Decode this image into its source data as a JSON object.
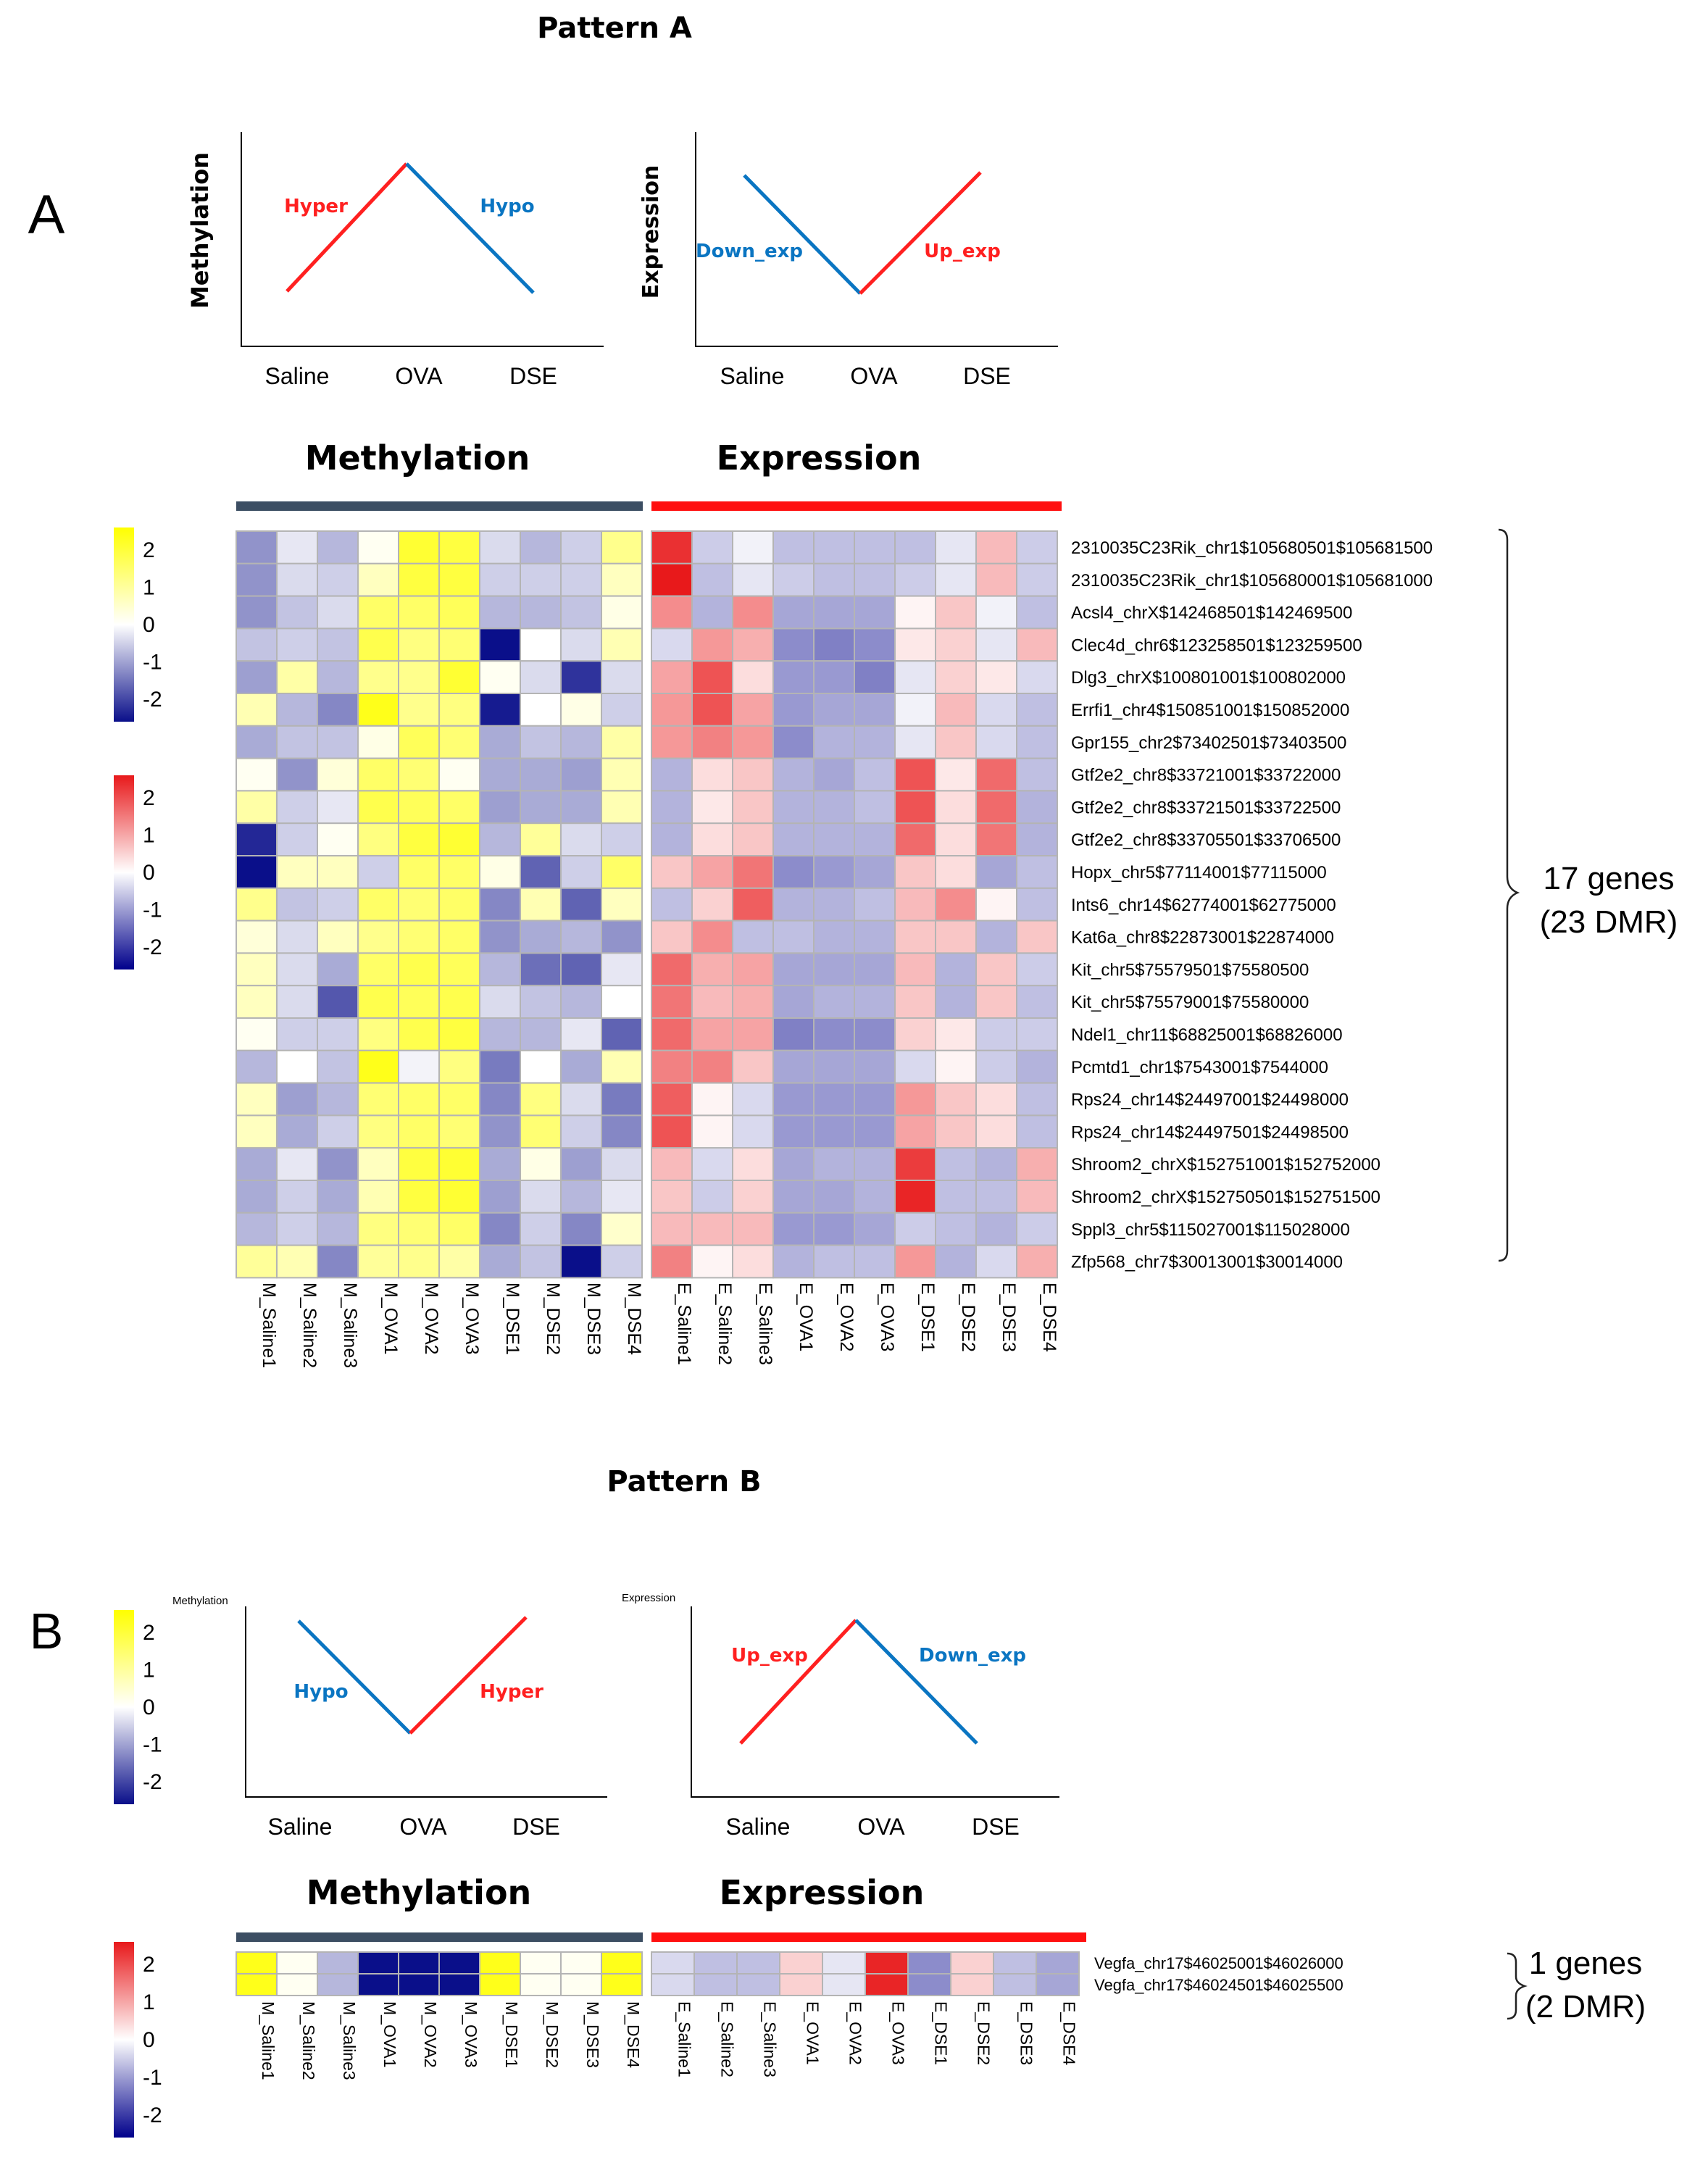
{
  "figure": {
    "pattern_a_title": "Pattern A",
    "pattern_b_title": "Pattern B",
    "panel_a_letter": "A",
    "panel_b_letter": "B"
  },
  "colors": {
    "methylation_scale": [
      "#0a0f8a",
      "#ffffff",
      "#ffff00"
    ],
    "expression_scale": [
      "#00008b",
      "#ffffff",
      "#e8191b"
    ],
    "hyper_line": "#ff2020",
    "hypo_line": "#0a75c2",
    "methylation_bar": "#3c4e63",
    "expression_bar": "#ff1010",
    "grid": "#b4b4b4"
  },
  "pattern_a": {
    "methylation_schematic": {
      "ylabel": "Methylation",
      "xlabels": [
        "Saline",
        "OVA",
        "DSE"
      ],
      "left_label": "Hyper",
      "right_label": "Hypo"
    },
    "expression_schematic": {
      "ylabel": "Expression",
      "xlabels": [
        "Saline",
        "OVA",
        "DSE"
      ],
      "left_label": "Down_exp",
      "right_label": "Up_exp"
    },
    "methylation_header": "Methylation",
    "expression_header": "Expression",
    "bracket_label_1": "17 genes",
    "bracket_label_2": "(23 DMR)"
  },
  "pattern_b": {
    "methylation_schematic": {
      "ylabel": "Methylation",
      "xlabels": [
        "Saline",
        "OVA",
        "DSE"
      ],
      "left_label": "Hypo",
      "right_label": "Hyper"
    },
    "expression_schematic": {
      "ylabel": "Expression",
      "xlabels": [
        "Saline",
        "OVA",
        "DSE"
      ],
      "left_label": "Up_exp",
      "right_label": "Down_exp"
    },
    "methylation_header": "Methylation",
    "expression_header": "Expression",
    "bracket_label_1": "1 genes",
    "bracket_label_2": "(2 DMR)"
  },
  "chart_data": [
    {
      "type": "heatmap",
      "title": "Pattern A",
      "color_scale_range": [
        -2,
        2
      ],
      "scale_ticks": [
        "2",
        "1",
        "0",
        "-1",
        "-2"
      ],
      "methylation_columns": [
        "M_Saline1",
        "M_Saline2",
        "M_Saline3",
        "M_OVA1",
        "M_OVA2",
        "M_OVA3",
        "M_DSE1",
        "M_DSE2",
        "M_DSE3",
        "M_DSE4"
      ],
      "expression_columns": [
        "E_Saline1",
        "E_Saline2",
        "E_Saline3",
        "E_OVA1",
        "E_OVA2",
        "E_OVA3",
        "E_DSE1",
        "E_DSE2",
        "E_DSE3",
        "E_DSE4"
      ],
      "rows": [
        "2310035C23Rik_chr1$105680501$105681500",
        "2310035C23Rik_chr1$105680001$105681000",
        "Acsl4_chrX$142468501$142469500",
        "Clec4d_chr6$123258501$123259500",
        "Dlg3_chrX$100801001$100802000",
        "Errfi1_chr4$150851001$150852000",
        "Gpr155_chr2$73402501$73403500",
        "Gtf2e2_chr8$33721001$33722000",
        "Gtf2e2_chr8$33721501$33722500",
        "Gtf2e2_chr8$33705501$33706500",
        "Hopx_chr5$77114001$77115000",
        "Ints6_chr14$62774001$62775000",
        "Kat6a_chr8$22873001$22874000",
        "Kit_chr5$75579501$75580500",
        "Kit_chr5$75579001$75580000",
        "Ndel1_chr11$68825001$68826000",
        "Pcmtd1_chr1$7543001$7544000",
        "Rps24_chr14$24497001$24498000",
        "Rps24_chr14$24497501$24498500",
        "Shroom2_chrX$152751001$152752000",
        "Shroom2_chrX$152750501$152751500",
        "Sppl3_chr5$115027001$115028000",
        "Zfp568_chr7$30013001$30014000"
      ],
      "methylation_values": [
        [
          -0.9,
          -0.2,
          -0.6,
          0.1,
          1.6,
          1.5,
          -0.3,
          -0.6,
          -0.4,
          0.9
        ],
        [
          -0.9,
          -0.3,
          -0.4,
          0.5,
          1.5,
          1.5,
          -0.4,
          -0.4,
          -0.4,
          0.5
        ],
        [
          -0.9,
          -0.5,
          -0.3,
          1.2,
          1.2,
          1.3,
          -0.6,
          -0.6,
          -0.5,
          0.2
        ],
        [
          -0.5,
          -0.4,
          -0.5,
          1.4,
          1.0,
          1.1,
          -2.0,
          0.0,
          -0.3,
          0.6
        ],
        [
          -0.8,
          0.7,
          -0.6,
          0.9,
          0.9,
          1.6,
          0.1,
          -0.3,
          -1.7,
          -0.3
        ],
        [
          0.6,
          -0.6,
          -1.0,
          1.8,
          0.9,
          1.0,
          -1.9,
          0.0,
          0.2,
          -0.4
        ],
        [
          -0.7,
          -0.5,
          -0.5,
          0.2,
          1.3,
          1.1,
          -0.7,
          -0.5,
          -0.6,
          0.7
        ],
        [
          0.1,
          -0.9,
          0.3,
          1.2,
          1.1,
          0.1,
          -0.7,
          -0.7,
          -0.8,
          0.6
        ],
        [
          0.7,
          -0.4,
          -0.2,
          1.4,
          1.3,
          1.2,
          -0.8,
          -0.7,
          -0.7,
          0.6
        ],
        [
          -1.8,
          -0.4,
          0.1,
          1.0,
          1.5,
          1.6,
          -0.6,
          0.8,
          -0.3,
          -0.4
        ],
        [
          -2.1,
          0.5,
          0.5,
          -0.4,
          1.2,
          1.2,
          0.2,
          -1.3,
          -0.4,
          1.2
        ],
        [
          0.9,
          -0.5,
          -0.4,
          1.2,
          1.1,
          1.2,
          -1.0,
          0.6,
          -1.3,
          0.5
        ],
        [
          0.3,
          -0.3,
          0.5,
          0.9,
          1.1,
          1.2,
          -0.9,
          -0.7,
          -0.6,
          -0.9
        ],
        [
          0.5,
          -0.3,
          -0.7,
          1.2,
          1.4,
          1.3,
          -0.6,
          -1.2,
          -1.3,
          -0.2
        ],
        [
          0.5,
          -0.3,
          -1.4,
          1.4,
          1.3,
          1.4,
          -0.3,
          -0.5,
          -0.6,
          0.0
        ],
        [
          0.1,
          -0.4,
          -0.4,
          1.0,
          1.4,
          1.5,
          -0.6,
          -0.6,
          -0.2,
          -1.3
        ],
        [
          -0.6,
          0.0,
          -0.5,
          1.8,
          -0.1,
          1.0,
          -1.1,
          0.0,
          -0.7,
          0.6
        ],
        [
          0.5,
          -0.8,
          -0.6,
          1.1,
          1.2,
          1.2,
          -1.0,
          1.0,
          -0.3,
          -1.1
        ],
        [
          0.5,
          -0.7,
          -0.4,
          1.0,
          1.2,
          1.1,
          -0.9,
          1.1,
          -0.4,
          -1.0
        ],
        [
          -0.7,
          -0.2,
          -0.9,
          0.5,
          1.5,
          1.6,
          -0.7,
          0.2,
          -0.8,
          -0.3
        ],
        [
          -0.7,
          -0.4,
          -0.7,
          0.6,
          1.5,
          1.6,
          -0.8,
          -0.3,
          -0.6,
          -0.2
        ],
        [
          -0.6,
          -0.4,
          -0.6,
          1.0,
          1.1,
          1.2,
          -1.0,
          -0.4,
          -1.0,
          0.4
        ],
        [
          0.8,
          0.6,
          -1.0,
          0.8,
          0.9,
          0.7,
          -0.7,
          -0.5,
          -2.0,
          -0.4
        ]
      ],
      "expression_values": [
        [
          1.8,
          -0.4,
          -0.1,
          -0.5,
          -0.5,
          -0.5,
          -0.5,
          -0.2,
          0.6,
          -0.4
        ],
        [
          2.1,
          -0.5,
          -0.2,
          -0.4,
          -0.5,
          -0.5,
          -0.4,
          -0.2,
          0.6,
          -0.4
        ],
        [
          1.0,
          -0.6,
          1.0,
          -0.7,
          -0.7,
          -0.7,
          0.1,
          0.5,
          -0.1,
          -0.5
        ],
        [
          -0.3,
          0.9,
          0.7,
          -0.9,
          -1.0,
          -0.9,
          0.2,
          0.4,
          -0.2,
          0.6
        ],
        [
          0.8,
          1.5,
          0.3,
          -0.8,
          -0.8,
          -1.0,
          -0.2,
          0.4,
          0.2,
          -0.3
        ],
        [
          0.9,
          1.5,
          0.8,
          -0.8,
          -0.7,
          -0.7,
          -0.1,
          0.6,
          -0.3,
          -0.5
        ],
        [
          0.9,
          1.1,
          0.9,
          -0.9,
          -0.6,
          -0.6,
          -0.2,
          0.5,
          -0.3,
          -0.5
        ],
        [
          -0.6,
          0.3,
          0.5,
          -0.6,
          -0.7,
          -0.5,
          1.5,
          0.2,
          1.3,
          -0.5
        ],
        [
          -0.6,
          0.2,
          0.5,
          -0.6,
          -0.6,
          -0.5,
          1.5,
          0.3,
          1.3,
          -0.6
        ],
        [
          -0.6,
          0.3,
          0.5,
          -0.6,
          -0.6,
          -0.6,
          1.3,
          0.3,
          1.2,
          -0.6
        ],
        [
          0.5,
          0.8,
          1.2,
          -0.9,
          -0.8,
          -0.7,
          0.5,
          0.3,
          -0.7,
          -0.5
        ],
        [
          -0.5,
          0.4,
          1.4,
          -0.6,
          -0.6,
          -0.5,
          0.6,
          1.0,
          0.1,
          -0.5
        ],
        [
          0.5,
          1.0,
          -0.5,
          -0.5,
          -0.6,
          -0.6,
          0.5,
          0.5,
          -0.6,
          0.5
        ],
        [
          1.3,
          0.7,
          0.8,
          -0.7,
          -0.7,
          -0.7,
          0.6,
          -0.6,
          0.5,
          -0.4
        ],
        [
          1.2,
          0.6,
          0.7,
          -0.7,
          -0.6,
          -0.6,
          0.5,
          -0.6,
          0.5,
          -0.5
        ],
        [
          1.3,
          0.8,
          0.8,
          -1.0,
          -0.9,
          -0.9,
          0.4,
          0.2,
          -0.4,
          -0.4
        ],
        [
          1.1,
          1.1,
          0.5,
          -0.7,
          -0.7,
          -0.7,
          -0.3,
          0.1,
          -0.4,
          -0.6
        ],
        [
          1.4,
          0.1,
          -0.3,
          -0.8,
          -0.8,
          -0.8,
          0.9,
          0.5,
          0.3,
          -0.5
        ],
        [
          1.5,
          0.1,
          -0.3,
          -0.8,
          -0.8,
          -0.8,
          0.8,
          0.5,
          0.3,
          -0.5
        ],
        [
          0.6,
          -0.3,
          0.3,
          -0.7,
          -0.6,
          -0.6,
          1.7,
          -0.5,
          -0.6,
          0.7
        ],
        [
          0.5,
          -0.4,
          0.4,
          -0.7,
          -0.7,
          -0.6,
          1.9,
          -0.5,
          -0.5,
          0.6
        ],
        [
          0.6,
          0.6,
          0.6,
          -0.8,
          -0.8,
          -0.7,
          -0.4,
          -0.5,
          -0.6,
          -0.4
        ],
        [
          1.1,
          0.1,
          0.3,
          -0.6,
          -0.5,
          -0.5,
          0.9,
          -0.6,
          -0.3,
          0.7
        ]
      ]
    },
    {
      "type": "heatmap",
      "title": "Pattern B",
      "color_scale_range": [
        -2,
        2
      ],
      "scale_ticks": [
        "2",
        "1",
        "0",
        "-1",
        "-2"
      ],
      "methylation_columns": [
        "M_Saline1",
        "M_Saline2",
        "M_Saline3",
        "M_OVA1",
        "M_OVA2",
        "M_OVA3",
        "M_DSE1",
        "M_DSE2",
        "M_DSE3",
        "M_DSE4"
      ],
      "expression_columns": [
        "E_Saline1",
        "E_Saline2",
        "E_Saline3",
        "E_OVA1",
        "E_OVA2",
        "E_OVA3",
        "E_DSE1",
        "E_DSE2",
        "E_DSE3",
        "E_DSE4"
      ],
      "rows": [
        "Vegfa_chr17$46025001$46026000",
        "Vegfa_chr17$46024501$46025500"
      ],
      "methylation_values": [
        [
          1.8,
          0.1,
          -0.6,
          -2.0,
          -2.0,
          -2.0,
          1.8,
          0.1,
          0.1,
          1.8
        ],
        [
          1.8,
          0.1,
          -0.6,
          -2.0,
          -2.0,
          -2.0,
          1.8,
          0.1,
          0.1,
          1.8
        ]
      ],
      "expression_values": [
        [
          -0.3,
          -0.5,
          -0.5,
          0.4,
          -0.2,
          1.9,
          -0.9,
          0.4,
          -0.5,
          -0.7
        ],
        [
          -0.3,
          -0.5,
          -0.5,
          0.4,
          -0.2,
          1.9,
          -0.9,
          0.4,
          -0.5,
          -0.7
        ]
      ]
    }
  ]
}
